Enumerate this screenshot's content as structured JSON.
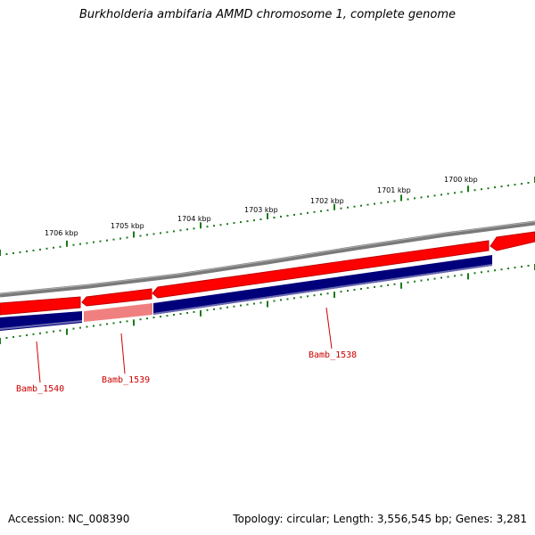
{
  "title": "Burkholderia ambifaria AMMD chromosome 1, complete genome",
  "scale_labels": [
    "1706 kbp",
    "1705 kbp",
    "1704 kbp",
    "1703 kbp",
    "1702 kbp",
    "1701 kbp",
    "1700 kbp"
  ],
  "genes": [
    {
      "locus": "Bamb_1540"
    },
    {
      "locus": "Bamb_1539"
    },
    {
      "locus": "Bamb_1538"
    }
  ],
  "footer": {
    "accession": "Accession: NC_008390",
    "summary": "Topology: circular; Length: 3,556,545 bp; Genes: 3,281"
  },
  "colors": {
    "backbone": "#7a7a7a",
    "feature_red": "#ff0000",
    "feature_red_dark": "#c00000",
    "feature_pink": "#f08080",
    "feature_navy": "#00007a",
    "tick_green": "#1a7a1a",
    "label_red": "#cc0000"
  }
}
